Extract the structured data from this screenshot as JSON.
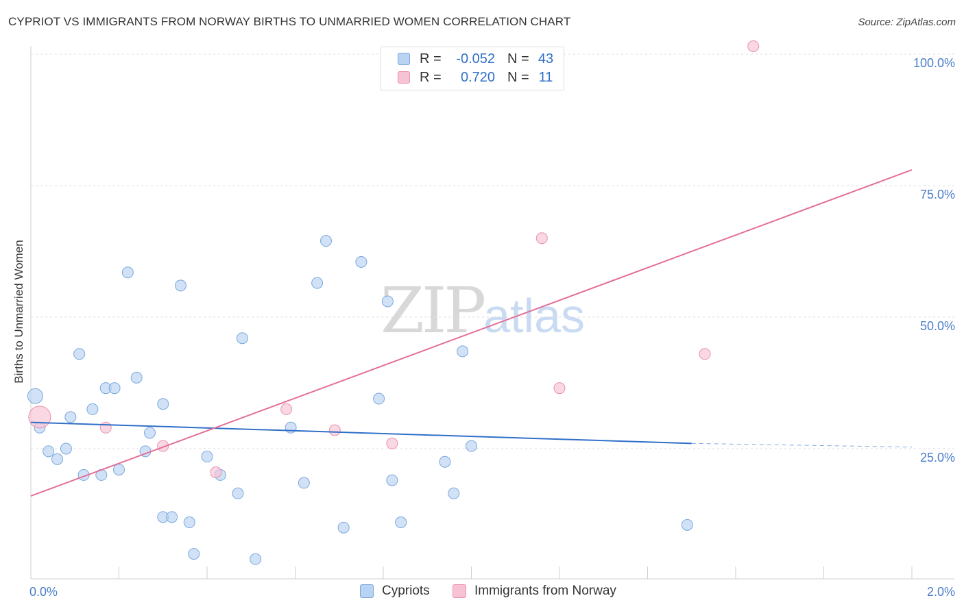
{
  "title": "CYPRIOT VS IMMIGRANTS FROM NORWAY BIRTHS TO UNMARRIED WOMEN CORRELATION CHART",
  "source": "Source: ZipAtlas.com",
  "watermark": {
    "zip": "ZIP",
    "atlas": "atlas"
  },
  "colors": {
    "blue_fill": "#b9d3f3",
    "blue_stroke": "#7aa7de",
    "blue_line": "#2f6fc9",
    "pink_fill": "#f7c3d4",
    "pink_stroke": "#e98fae",
    "pink_line": "#e46f97",
    "tick_text": "#4a7ec9"
  },
  "legend": {
    "rows": [
      {
        "r_label": "R =",
        "r_value": "-0.052",
        "n_label": "N =",
        "n_value": "43"
      },
      {
        "r_label": "R =",
        "r_value": "0.720",
        "n_label": "N =",
        "n_value": "11"
      }
    ]
  },
  "bottom_legend": [
    "Cypriots",
    "Immigrants from Norway"
  ],
  "chart_data": {
    "type": "scatter",
    "xlabel": "",
    "ylabel": "Births to Unmarried Women",
    "xlim": [
      0,
      2
    ],
    "ylim": [
      0,
      100
    ],
    "x_tick_labels": [
      "0.0%",
      "2.0%"
    ],
    "y_tick_labels": [
      "100.0%",
      "75.0%",
      "50.0%",
      "25.0%"
    ],
    "y_ticks": [
      100,
      75,
      50,
      25
    ],
    "grid": true,
    "series": [
      {
        "name": "Cypriots",
        "r": -0.052,
        "n": 43,
        "trend": {
          "x0": 0.0,
          "y0": 30.0,
          "x1": 1.5,
          "y1": 26.0,
          "dash_to": 2.0,
          "dash_y": 25.3
        },
        "points": [
          [
            0.01,
            35.0
          ],
          [
            0.02,
            29.0
          ],
          [
            0.04,
            24.5
          ],
          [
            0.06,
            23.0
          ],
          [
            0.08,
            25.0
          ],
          [
            0.09,
            31.0
          ],
          [
            0.11,
            43.0
          ],
          [
            0.12,
            20.0
          ],
          [
            0.14,
            32.5
          ],
          [
            0.16,
            20.0
          ],
          [
            0.17,
            36.5
          ],
          [
            0.19,
            36.5
          ],
          [
            0.2,
            21.0
          ],
          [
            0.22,
            58.5
          ],
          [
            0.24,
            38.5
          ],
          [
            0.26,
            24.5
          ],
          [
            0.27,
            28.0
          ],
          [
            0.3,
            12.0
          ],
          [
            0.3,
            33.5
          ],
          [
            0.32,
            12.0
          ],
          [
            0.34,
            56.0
          ],
          [
            0.36,
            11.0
          ],
          [
            0.37,
            5.0
          ],
          [
            0.4,
            23.5
          ],
          [
            0.43,
            20.0
          ],
          [
            0.47,
            16.5
          ],
          [
            0.48,
            46.0
          ],
          [
            0.51,
            4.0
          ],
          [
            0.59,
            29.0
          ],
          [
            0.62,
            18.5
          ],
          [
            0.65,
            56.5
          ],
          [
            0.67,
            64.5
          ],
          [
            0.71,
            10.0
          ],
          [
            0.75,
            60.5
          ],
          [
            0.79,
            34.5
          ],
          [
            0.81,
            53.0
          ],
          [
            0.82,
            19.0
          ],
          [
            0.84,
            11.0
          ],
          [
            0.94,
            22.5
          ],
          [
            0.96,
            16.5
          ],
          [
            0.98,
            43.5
          ],
          [
            1.0,
            25.5
          ],
          [
            1.49,
            10.5
          ]
        ]
      },
      {
        "name": "Immigrants from Norway",
        "r": 0.72,
        "n": 11,
        "trend": {
          "x0": 0.0,
          "y0": 16.0,
          "x1": 2.0,
          "y1": 78.0
        },
        "points": [
          [
            0.02,
            31.0
          ],
          [
            0.17,
            29.0
          ],
          [
            0.3,
            25.5
          ],
          [
            0.42,
            20.5
          ],
          [
            0.58,
            32.5
          ],
          [
            0.69,
            28.5
          ],
          [
            0.82,
            26.0
          ],
          [
            1.16,
            65.0
          ],
          [
            1.2,
            36.5
          ],
          [
            1.53,
            43.0
          ],
          [
            1.64,
            101.5
          ]
        ]
      }
    ]
  }
}
